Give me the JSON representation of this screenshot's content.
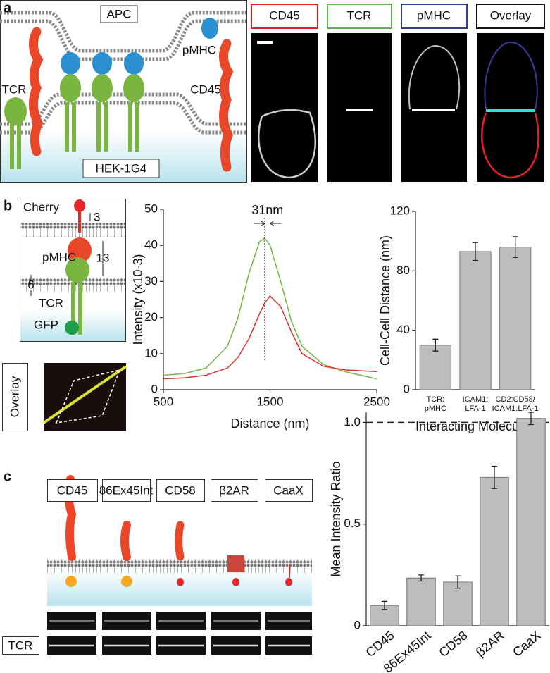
{
  "panel_labels": {
    "a": "a",
    "b": "b",
    "c": "c"
  },
  "panel_a": {
    "apc": "APC",
    "pmhc": "pMHC",
    "tcr": "TCR",
    "cd45": "CD45",
    "hek": "HEK-1G4",
    "image_titles": [
      "CD45",
      "TCR",
      "pMHC",
      "Overlay"
    ]
  },
  "panel_b": {
    "cherry": "Cherry",
    "d1": 3,
    "pmhc": "pMHC",
    "d2": 13,
    "tcr": "TCR",
    "d3": 6,
    "gfp": "GFP",
    "overlay": "Overlay"
  },
  "panel_c": {
    "constructs": [
      "CD45",
      "86Ex45Int",
      "CD58",
      "β2AR",
      "CaaX"
    ],
    "tcr": "TCR"
  },
  "chart_data": [
    {
      "type": "line",
      "x_label": "Distance (nm)",
      "y_label": "Intensity (x10-3)",
      "annotation": "31nm",
      "x": [
        500,
        700,
        900,
        1100,
        1200,
        1300,
        1400,
        1450,
        1500,
        1600,
        1700,
        1800,
        2000,
        2200,
        2500
      ],
      "series": [
        {
          "color": "#72b844",
          "values": [
            4,
            4.5,
            6,
            12,
            20,
            32,
            41,
            42,
            40,
            30,
            19,
            12,
            7,
            5,
            3
          ]
        },
        {
          "color": "#e2312b",
          "values": [
            3,
            3.3,
            4,
            6,
            9,
            14,
            21,
            24,
            26,
            23,
            16,
            10,
            6.5,
            5.5,
            5
          ]
        }
      ],
      "xlim": [
        500,
        2500
      ],
      "xticks": [
        500,
        1500,
        2500
      ],
      "ylim": [
        0,
        50
      ],
      "yticks": [
        0,
        10,
        20,
        30,
        40,
        50
      ]
    },
    {
      "type": "bar",
      "x_label": "Interacting Molecules",
      "y_label": "Cell-Cell Distance (nm)",
      "categories": [
        [
          "TCR:",
          "pMHC"
        ],
        [
          "ICAM1:",
          "LFA-1"
        ],
        [
          "CD2:CD58/",
          "ICAM1:LFA-1"
        ]
      ],
      "values": [
        30,
        93,
        96
      ],
      "errors": [
        4,
        6,
        7
      ],
      "color": "#bdbdbd",
      "ylim": [
        0,
        120
      ],
      "yticks": [
        0,
        40,
        80,
        120
      ]
    },
    {
      "type": "bar",
      "y_label": "Mean Intensity Ratio",
      "categories": [
        "CD45",
        "86Ex45Int",
        "CD58",
        "β2AR",
        "CaaX"
      ],
      "values": [
        0.1,
        0.235,
        0.215,
        0.73,
        1.02
      ],
      "errors": [
        0.02,
        0.015,
        0.03,
        0.055,
        0.03
      ],
      "color": "#bdbdbd",
      "reference_line": 1,
      "ylim": [
        0,
        1.05
      ],
      "yticks": [
        0,
        0.5,
        {
          "value": 1,
          "label": "1.0"
        }
      ]
    }
  ]
}
